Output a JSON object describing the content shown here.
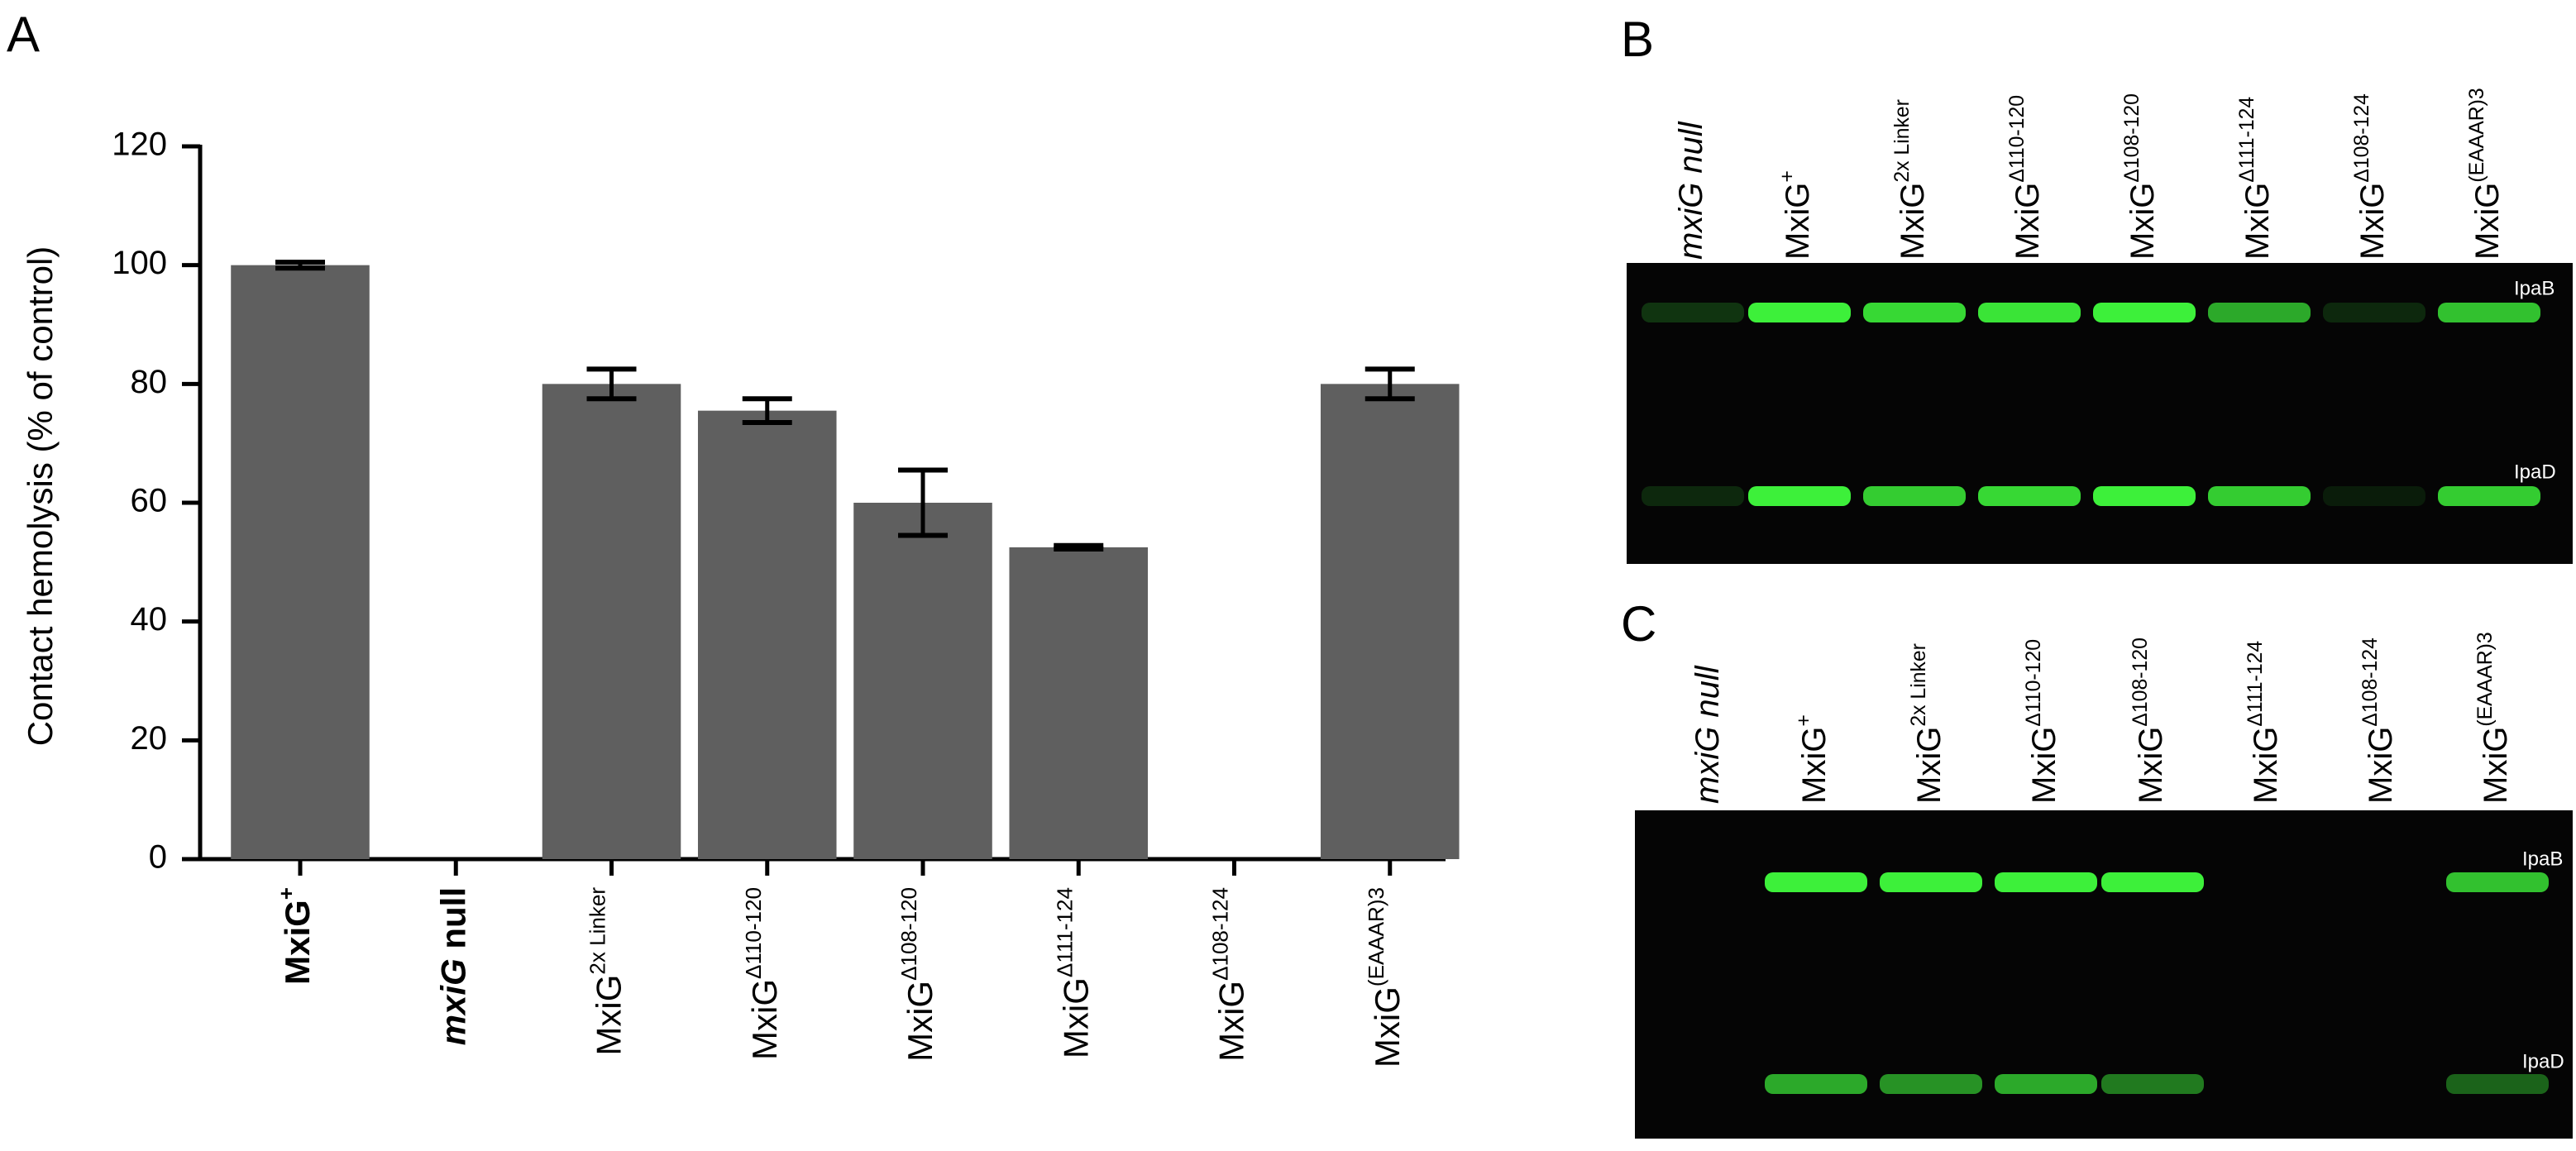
{
  "panel_labels": [
    "A",
    "B",
    "C"
  ],
  "chart_data": {
    "type": "bar",
    "y_label": "Contact hemolysis (% of control)",
    "categories": [
      {
        "base": "MxiG",
        "sup": "+"
      },
      {
        "base": "mxiG",
        "tail": " null"
      },
      {
        "base": "MxiG",
        "sup": "2x Linker"
      },
      {
        "base": "MxiG",
        "sup": "Δ110-120"
      },
      {
        "base": "MxiG",
        "sup": "Δ108-120"
      },
      {
        "base": "MxiG",
        "sup": "Δ111-124"
      },
      {
        "base": "MxiG",
        "sup": "Δ108-124"
      },
      {
        "base": "MxiG",
        "sup": "(EAAAR)3"
      }
    ],
    "values": [
      100,
      0,
      80,
      75.5,
      60,
      52.5,
      0,
      80
    ],
    "errors": [
      0.5,
      null,
      2.5,
      2,
      5.5,
      0.3,
      null,
      2.5
    ],
    "color": "#5f5f5f",
    "ylim": [
      0,
      120
    ],
    "yticks": [
      0,
      20,
      40,
      60,
      80,
      100,
      120
    ],
    "grid": false
  },
  "blots": [
    {
      "lanes": [
        {
          "base": "mxiG null"
        },
        {
          "base": "MxiG",
          "sup": "+"
        },
        {
          "base": "MxiG",
          "sup": "2x Linker"
        },
        {
          "base": "MxiG",
          "sup": "Δ110-120"
        },
        {
          "base": "MxiG",
          "sup": "Δ108-120"
        },
        {
          "base": "MxiG",
          "sup": "Δ111-124"
        },
        {
          "base": "MxiG",
          "sup": "Δ108-124"
        },
        {
          "base": "MxiG",
          "sup": "(EAAAR)3"
        }
      ],
      "bands": [
        "IpaB",
        "IpaD"
      ]
    },
    {
      "lanes": [
        {
          "base": "mxiG null"
        },
        {
          "base": "MxiG",
          "sup": "+"
        },
        {
          "base": "MxiG",
          "sup": "2x Linker"
        },
        {
          "base": "MxiG",
          "sup": "Δ110-120"
        },
        {
          "base": "MxiG",
          "sup": "Δ108-120"
        },
        {
          "base": "MxiG",
          "sup": "Δ111-124"
        },
        {
          "base": "MxiG",
          "sup": "Δ108-124"
        },
        {
          "base": "MxiG",
          "sup": "(EAAAR)3"
        }
      ],
      "bands": [
        "IpaB",
        "IpaD"
      ]
    }
  ]
}
